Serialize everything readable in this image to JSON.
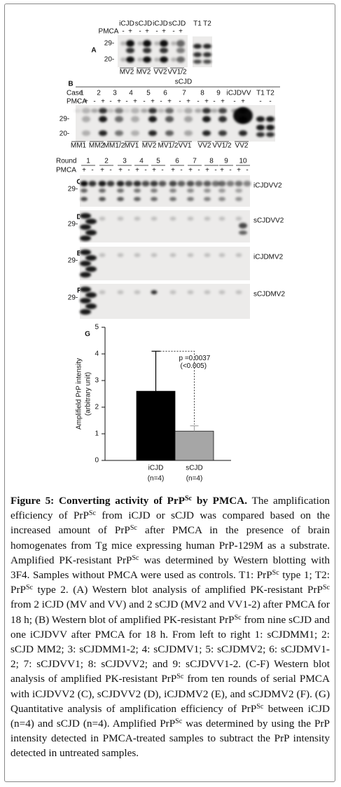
{
  "panel_a": {
    "label": "A",
    "groups": [
      "iCJD",
      "sCJD",
      "iCJD",
      "sCJD"
    ],
    "controls": [
      "T1",
      "T2"
    ],
    "pmca_label": "PMCA",
    "signs": [
      "-",
      "+",
      "-",
      "+",
      "-",
      "+",
      "-",
      "+"
    ],
    "markers": [
      "29-",
      "20-"
    ],
    "genotypes": [
      "MV2",
      "MV2",
      "VV2",
      "VV1/2"
    ]
  },
  "panel_b": {
    "label": "B",
    "title": "sCJD",
    "case_label": "Case",
    "cases": [
      "1",
      "2",
      "3",
      "4",
      "5",
      "6",
      "7",
      "8",
      "9",
      "iCJDVV",
      "T1",
      "T2"
    ],
    "pmca_label": "PMCA",
    "signs": [
      "-",
      "+",
      "-",
      "+",
      "-",
      "+",
      "-",
      "+",
      "-",
      "+",
      "-",
      "+",
      "-",
      "+",
      "-",
      "+",
      "-",
      "+",
      "-",
      "+",
      "-",
      "-"
    ],
    "markers": [
      "29-",
      "20-"
    ],
    "genotypes": [
      "MM1",
      "MM2",
      "MM1/2",
      "MV1",
      "MV2",
      "MV1/2",
      "VV1",
      "VV2",
      "VV1/2",
      "VV2"
    ]
  },
  "panels_cf": {
    "round_label": "Round",
    "rounds": [
      "1",
      "2",
      "3",
      "4",
      "5",
      "6",
      "7",
      "8",
      "9",
      "10"
    ],
    "pmca_label": "PMCA",
    "signs": [
      "+",
      "-",
      "+",
      "-",
      "+",
      "-",
      "+",
      "-",
      "+",
      "-",
      "+",
      "-",
      "+",
      "-",
      "+",
      "-",
      "+",
      "-",
      "+",
      "-"
    ],
    "blots": [
      {
        "label": "C",
        "marker": "29-",
        "name": "iCJDVV2"
      },
      {
        "label": "D",
        "marker": "29-",
        "name": "sCJDVV2"
      },
      {
        "label": "E",
        "marker": "29-",
        "name": "iCJDMV2"
      },
      {
        "label": "F",
        "marker": "29-",
        "name": "sCJDMV2"
      }
    ]
  },
  "chart_data": {
    "type": "bar",
    "panel_label": "G",
    "y_label": [
      "Amplifield PrP intensity",
      "(arbitrary unit)"
    ],
    "categories": [
      "iCJD",
      "sCJD"
    ],
    "category_notes": [
      "(n=4)",
      "(n=4)"
    ],
    "values": [
      2.6,
      1.1
    ],
    "errors": [
      1.5,
      0.2
    ],
    "colors": [
      "#000000",
      "#a6a6a6"
    ],
    "ylim": [
      0,
      5
    ],
    "yticks": [
      0,
      1,
      2,
      3,
      4,
      5
    ],
    "annotation": [
      "p =0.0037",
      "(<0.005)"
    ]
  },
  "caption": [
    {
      "text": "Figure 5: Converting activity of PrP",
      "style": "bold"
    },
    {
      "text": "Sc",
      "style": "bold-sup"
    },
    {
      "text": " by PMCA.",
      "style": "bold"
    },
    {
      "text": " The amplification efficiency of PrP",
      "style": "plain"
    },
    {
      "text": "Sc",
      "style": "sup"
    },
    {
      "text": " from iCJD or sCJD was compared based on the increased amount of PrP",
      "style": "plain"
    },
    {
      "text": "Sc",
      "style": "sup"
    },
    {
      "text": " after PMCA in the presence of brain homogenates from Tg mice expressing human PrP-129M as a substrate. Amplified PK-resistant PrP",
      "style": "plain"
    },
    {
      "text": "Sc",
      "style": "sup"
    },
    {
      "text": " was determined by Western blotting with 3F4. Samples without PMCA were used as controls. T1: PrP",
      "style": "plain"
    },
    {
      "text": "Sc",
      "style": "sup"
    },
    {
      "text": " type 1; T2: PrP",
      "style": "plain"
    },
    {
      "text": "Sc",
      "style": "sup"
    },
    {
      "text": " type 2. (A) Western blot analysis of amplified PK-resistant PrP",
      "style": "plain"
    },
    {
      "text": "Sc",
      "style": "sup"
    },
    {
      "text": " from 2 iCJD (MV and VV) and 2 sCJD (MV2 and VV1-2) after PMCA for 18 h; (B) Western blot of amplified PK-resistant PrP",
      "style": "plain"
    },
    {
      "text": "Sc",
      "style": "sup"
    },
    {
      "text": " from nine sCJD and one iCJDVV after PMCA for 18 h. From left to right 1: sCJDMM1; 2: sCJD MM2; 3: sCJDMM1-2; 4: sCJDMV1; 5: sCJDMV2; 6: sCJDMV1-2; 7: sCJDVV1; 8: sCJDVV2; and 9: sCJDVV1-2. (C-F) Western blot analysis of amplified PK-resistant PrP",
      "style": "plain"
    },
    {
      "text": "Sc",
      "style": "sup"
    },
    {
      "text": " from ten rounds of serial PMCA with iCJDVV2 (C), sCJDVV2 (D), iCJDMV2 (E), and sCJDMV2 (F). (G) Quantitative analysis of amplification efficiency of PrP",
      "style": "plain"
    },
    {
      "text": "Sc",
      "style": "sup"
    },
    {
      "text": " between iCJD (n=4) and sCJD (n=4). Amplified PrP",
      "style": "plain"
    },
    {
      "text": "Sc",
      "style": "sup"
    },
    {
      "text": " was determined by using the PrP intensity detected in PMCA-treated samples to subtract the PrP intensity detected in untreated samples.",
      "style": "plain"
    }
  ]
}
